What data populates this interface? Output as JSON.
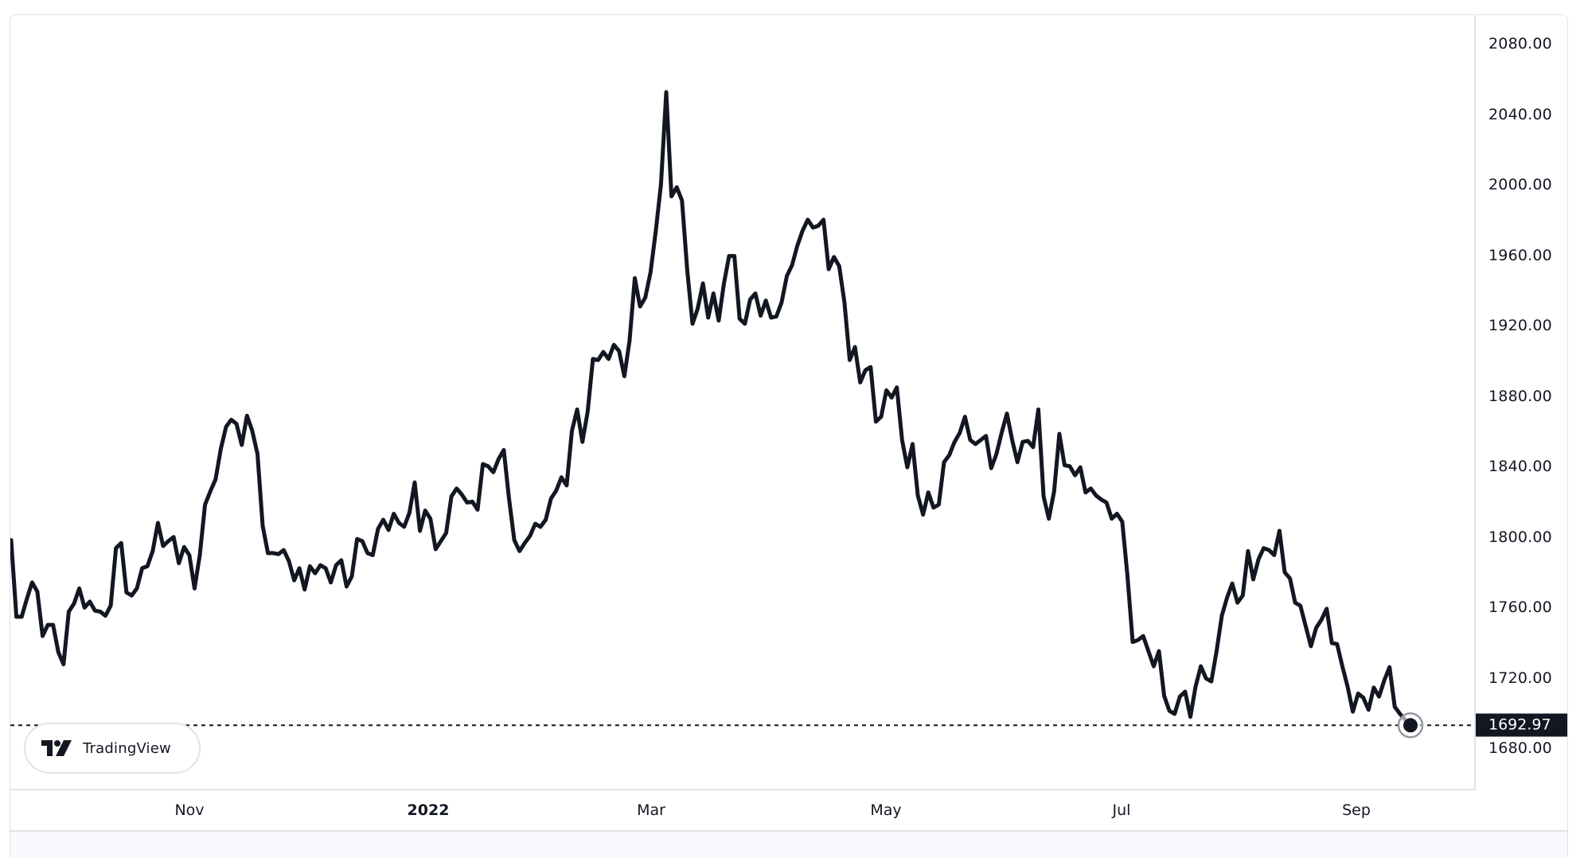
{
  "widget": {
    "logo_text": "TradingView",
    "last_price_label": "1692.97",
    "colors": {
      "line": "#131722",
      "axis_border": "#e0e3eb",
      "last_price_bg": "#131722",
      "last_price_text": "#ffffff"
    }
  },
  "price_axis": {
    "ticks": [
      "2080.00",
      "2040.00",
      "2000.00",
      "1960.00",
      "1920.00",
      "1880.00",
      "1840.00",
      "1800.00",
      "1760.00",
      "1720.00",
      "1680.00"
    ]
  },
  "time_axis": {
    "labels": [
      {
        "text": "Nov",
        "bold": false
      },
      {
        "text": "2022",
        "bold": true
      },
      {
        "text": "Mar",
        "bold": false
      },
      {
        "text": "May",
        "bold": false
      },
      {
        "text": "Jul",
        "bold": false
      },
      {
        "text": "Sep",
        "bold": false
      }
    ]
  },
  "chart_data": {
    "type": "line",
    "title": "",
    "xlabel": "",
    "ylabel": "",
    "ylim": [
      1660,
      2090
    ],
    "grid": false,
    "legend": "none",
    "x_tick_labels": [
      "Nov",
      "2022",
      "Mar",
      "May",
      "Jul",
      "Sep"
    ],
    "y_tick_labels": [
      "2080.00",
      "2040.00",
      "2000.00",
      "1960.00",
      "1920.00",
      "1880.00",
      "1840.00",
      "1800.00",
      "1760.00",
      "1720.00",
      "1680.00"
    ],
    "last_value": 1692.97,
    "series": [
      {
        "name": "price",
        "values": [
          1798.2,
          1754.6,
          1754.6,
          1764.9,
          1774.1,
          1768.9,
          1743.7,
          1750.0,
          1750.0,
          1734.5,
          1727.6,
          1757.5,
          1762.1,
          1770.7,
          1759.8,
          1763.2,
          1758.1,
          1757.5,
          1755.2,
          1760.9,
          1793.6,
          1796.5,
          1768.4,
          1766.7,
          1770.7,
          1782.2,
          1783.3,
          1791.9,
          1807.9,
          1794.8,
          1797.6,
          1799.9,
          1785.0,
          1794.2,
          1789.6,
          1770.7,
          1789.6,
          1818.3,
          1825.8,
          1832.7,
          1849.9,
          1862.5,
          1866.5,
          1864.2,
          1852.2,
          1868.8,
          1860.2,
          1847.0,
          1806.3,
          1790.8,
          1790.8,
          1790.2,
          1792.5,
          1786.2,
          1775.3,
          1782.2,
          1770.1,
          1783.3,
          1779.3,
          1783.9,
          1782.2,
          1774.1,
          1783.9,
          1786.7,
          1771.8,
          1777.6,
          1798.8,
          1797.6,
          1790.8,
          1789.6,
          1804.5,
          1809.7,
          1803.9,
          1813.1,
          1807.9,
          1805.7,
          1813.7,
          1830.9,
          1803.4,
          1814.9,
          1810.3,
          1793.0,
          1797.6,
          1802.2,
          1822.9,
          1827.5,
          1824.0,
          1819.5,
          1820.0,
          1815.4,
          1841.3,
          1840.1,
          1836.7,
          1844.1,
          1849.3,
          1821.7,
          1798.2,
          1791.9,
          1796.5,
          1800.5,
          1807.4,
          1805.7,
          1809.7,
          1821.7,
          1826.3,
          1833.8,
          1829.2,
          1860.2,
          1872.3,
          1853.9,
          1871.1,
          1901.0,
          1900.4,
          1905.0,
          1901.0,
          1909.0,
          1905.5,
          1891.2,
          1911.3,
          1946.9,
          1930.8,
          1935.9,
          1950.3,
          1973.8,
          2000.2,
          2052.5,
          1993.3,
          1998.5,
          1991.0,
          1951.4,
          1921.0,
          1929.6,
          1943.9,
          1924.5,
          1938.2,
          1922.8,
          1943.9,
          1959.5,
          1959.5,
          1923.9,
          1921.0,
          1934.8,
          1938.2,
          1925.6,
          1934.2,
          1924.5,
          1925.1,
          1933.1,
          1948.1,
          1954.3,
          1965.2,
          1973.8,
          1980.1,
          1975.6,
          1976.7,
          1980.1,
          1952.0,
          1958.9,
          1953.7,
          1933.1,
          1900.4,
          1907.8,
          1887.7,
          1894.6,
          1896.4,
          1865.4,
          1868.2,
          1883.2,
          1879.1,
          1884.9,
          1855.0,
          1839.5,
          1852.7,
          1823.5,
          1812.6,
          1825.2,
          1816.6,
          1818.3,
          1842.4,
          1846.4,
          1853.9,
          1859.1,
          1868.2,
          1855.0,
          1852.7,
          1855.0,
          1857.3,
          1839.0,
          1847.0,
          1859.1,
          1870.0,
          1855.0,
          1842.4,
          1853.9,
          1854.5,
          1851.0,
          1872.3,
          1822.9,
          1810.3,
          1825.8,
          1858.5,
          1840.7,
          1840.1,
          1835.0,
          1839.5,
          1825.2,
          1827.5,
          1823.5,
          1821.2,
          1819.5,
          1810.3,
          1813.1,
          1808.6,
          1778.1,
          1740.3,
          1741.4,
          1743.7,
          1735.1,
          1726.5,
          1735.1,
          1709.8,
          1701.2,
          1699.5,
          1709.3,
          1712.1,
          1697.8,
          1715.0,
          1726.5,
          1719.6,
          1717.9,
          1735.1,
          1755.2,
          1765.5,
          1773.5,
          1762.6,
          1766.7,
          1791.9,
          1775.8,
          1787.3,
          1793.6,
          1792.5,
          1789.6,
          1803.4,
          1779.9,
          1776.4,
          1762.6,
          1760.9,
          1749.4,
          1737.9,
          1748.3,
          1752.9,
          1759.2,
          1739.7,
          1739.1,
          1726.5,
          1715.0,
          1700.7,
          1711.0,
          1708.7,
          1701.8,
          1714.4,
          1709.3,
          1718.5,
          1726.0,
          1703.5,
          1699.5,
          1696.1,
          1692.97
        ]
      }
    ]
  }
}
